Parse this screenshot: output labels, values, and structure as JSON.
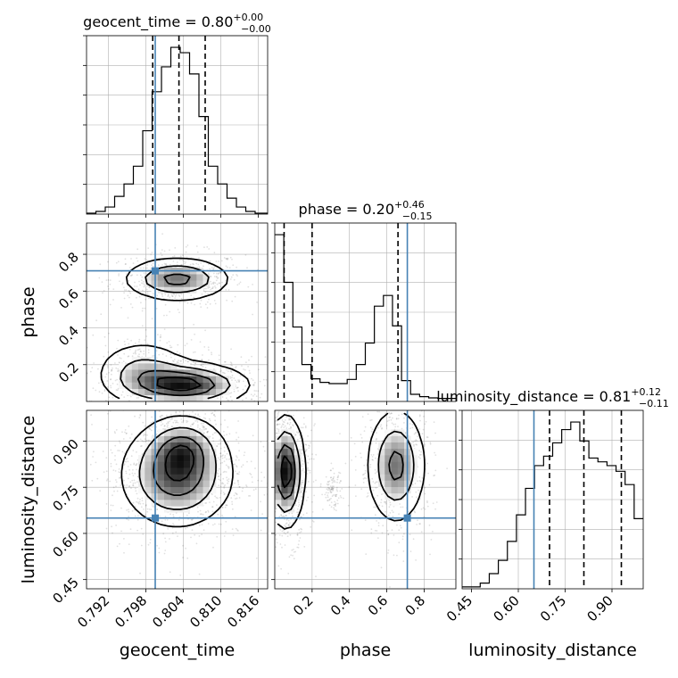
{
  "chart_data": {
    "type": "corner",
    "parameters": [
      {
        "name": "geocent_time",
        "label": "geocent_time",
        "range": [
          0.7885,
          0.8175
        ],
        "truth": 0.7995,
        "quantiles": [
          0.7991,
          0.8033,
          0.8075
        ],
        "title": {
          "main": "geocent_time = 0.80",
          "sup": "+0.00",
          "sub": "−0.00"
        },
        "ticks": [
          0.792,
          0.798,
          0.804,
          0.81,
          0.816
        ],
        "tick_labels": [
          "0.792",
          "0.798",
          "0.804",
          "0.810",
          "0.816"
        ],
        "hist_edges": [
          0.7885,
          0.79,
          0.7915,
          0.793,
          0.7945,
          0.796,
          0.7975,
          0.799,
          0.8005,
          0.802,
          0.8035,
          0.805,
          0.8065,
          0.808,
          0.8095,
          0.811,
          0.8125,
          0.814,
          0.8155,
          0.8175
        ],
        "hist_values": [
          0.5,
          1.5,
          4,
          10,
          17,
          27,
          47,
          69,
          83,
          94,
          91,
          79,
          55,
          27,
          17,
          9,
          4,
          1.5,
          0.5
        ]
      },
      {
        "name": "phase",
        "label": "phase",
        "range": [
          0.0,
          0.97
        ],
        "truth": 0.71,
        "quantiles": [
          0.05,
          0.2,
          0.66
        ],
        "title": {
          "main": "phase = 0.20",
          "sup": "+0.46",
          "sub": "−0.15"
        },
        "ticks": [
          0.2,
          0.4,
          0.6,
          0.8
        ],
        "tick_labels": [
          "0.2",
          "0.4",
          "0.6",
          "0.8"
        ],
        "hist_edges": [
          0.0,
          0.0485,
          0.097,
          0.1455,
          0.194,
          0.2425,
          0.291,
          0.3395,
          0.388,
          0.4365,
          0.485,
          0.5335,
          0.582,
          0.6305,
          0.679,
          0.7275,
          0.776,
          0.8245,
          0.873,
          0.9215,
          0.97
        ],
        "hist_values": [
          280,
          200,
          125,
          62,
          38,
          32,
          30,
          30,
          37,
          62,
          98,
          160,
          178,
          127,
          35,
          12,
          8,
          6,
          5,
          5
        ]
      },
      {
        "name": "luminosity_distance",
        "label": "luminosity_distance",
        "range": [
          0.42,
          1.0
        ],
        "truth": 0.65,
        "quantiles": [
          0.7,
          0.81,
          0.93
        ],
        "title": {
          "main": "luminosity_distance = 0.81",
          "sup": "+0.12",
          "sub": "−0.11"
        },
        "ticks": [
          0.45,
          0.6,
          0.75,
          0.9
        ],
        "tick_labels": [
          "0.45",
          "0.60",
          "0.75",
          "0.90"
        ],
        "hist_edges": [
          0.42,
          0.449,
          0.478,
          0.507,
          0.536,
          0.565,
          0.594,
          0.623,
          0.652,
          0.681,
          0.71,
          0.739,
          0.768,
          0.797,
          0.826,
          0.855,
          0.884,
          0.913,
          0.942,
          0.971,
          1.0
        ],
        "hist_values": [
          1,
          1,
          3,
          8,
          15,
          25,
          39,
          53,
          65,
          70,
          77,
          84,
          88,
          78,
          69,
          67,
          65,
          62,
          55,
          37
        ]
      }
    ],
    "pairs": [
      {
        "x": "geocent_time",
        "y": "phase",
        "blobs": [
          {
            "cx": 0.803,
            "cy": 0.665,
            "sx": 0.0043,
            "sy": 0.06,
            "w": 1.0
          },
          {
            "cx": 0.8045,
            "cy": 0.09,
            "sx": 0.005,
            "sy": 0.06,
            "w": 1.3
          },
          {
            "cx": 0.7975,
            "cy": 0.16,
            "sx": 0.004,
            "sy": 0.09,
            "w": 0.6
          }
        ]
      },
      {
        "x": "geocent_time",
        "y": "luminosity_distance",
        "blobs": [
          {
            "cx": 0.803,
            "cy": 0.79,
            "sx": 0.0045,
            "sy": 0.085,
            "w": 1.0
          },
          {
            "cx": 0.804,
            "cy": 0.88,
            "sx": 0.003,
            "sy": 0.05,
            "w": 0.5
          }
        ]
      },
      {
        "x": "phase",
        "y": "luminosity_distance",
        "blobs": [
          {
            "cx": 0.06,
            "cy": 0.8,
            "sx": 0.05,
            "sy": 0.09,
            "w": 1.3
          },
          {
            "cx": 0.65,
            "cy": 0.82,
            "sx": 0.08,
            "sy": 0.095,
            "w": 0.9
          },
          {
            "cx": 0.31,
            "cy": 0.74,
            "sx": 0.02,
            "sy": 0.025,
            "w": 0.15
          }
        ]
      }
    ],
    "truth_color": "#4682b4",
    "quantile_style": "dashed",
    "grid": true,
    "levels": [
      0.12,
      0.35,
      0.62,
      0.85
    ]
  }
}
